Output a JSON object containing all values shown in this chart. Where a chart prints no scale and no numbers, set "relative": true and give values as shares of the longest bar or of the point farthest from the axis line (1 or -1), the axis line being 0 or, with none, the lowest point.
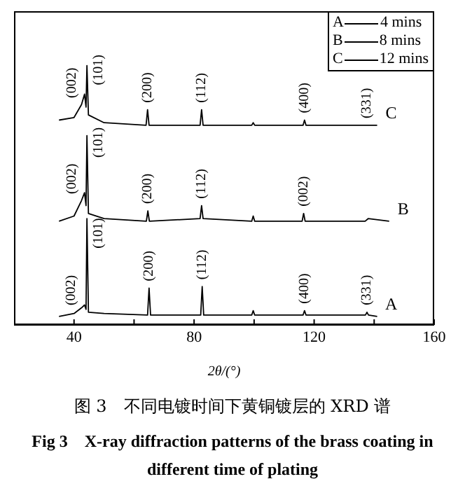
{
  "chart_data": {
    "type": "line",
    "relative": true,
    "title": "图 3　不同电镀时间下黄铜镀层的 XRD 谱",
    "subtitle": "Fig 3　X-ray diffraction patterns of the brass coating in different time of plating",
    "xlabel": "2θ/(°)",
    "xlim": [
      20,
      160
    ],
    "xticks": [
      40,
      {
        "value": 60,
        "label": null
      },
      80,
      {
        "value": 100,
        "label": null
      },
      120,
      {
        "value": 140,
        "label": null
      },
      160
    ],
    "tick_labels": "x",
    "marker": "none",
    "line_style": "solid",
    "legend": "top right",
    "series": [
      {
        "name": "4 mins",
        "color": "#000000",
        "x": [
          35,
          40,
          42.5,
          43.5,
          44.0,
          44.3,
          44.8,
          50,
          64.5,
          65,
          65.5,
          82.2,
          82.7,
          83.2,
          99.2,
          99.7,
          100.2,
          116.3,
          116.8,
          117.3,
          137.1,
          137.6,
          138.1,
          141
        ],
        "values": [
          0.033,
          0.044,
          0.066,
          0.077,
          0.06,
          0.41,
          0.049,
          0.044,
          0.038,
          0.142,
          0.038,
          0.038,
          0.148,
          0.038,
          0.038,
          0.055,
          0.038,
          0.038,
          0.055,
          0.038,
          0.038,
          0.049,
          0.038,
          0.033
        ]
      },
      {
        "name": "8 mins",
        "color": "#000000",
        "x": [
          35,
          40,
          42.5,
          43.5,
          44.0,
          44.3,
          44.8,
          50,
          64.1,
          64.6,
          65.1,
          82.0,
          82.5,
          83.0,
          99.2,
          99.7,
          100.2,
          116.0,
          116.5,
          117.0,
          137,
          138,
          145
        ],
        "values": [
          0.4,
          0.42,
          0.48,
          0.51,
          0.46,
          0.73,
          0.43,
          0.41,
          0.4,
          0.44,
          0.4,
          0.41,
          0.46,
          0.41,
          0.4,
          0.42,
          0.4,
          0.4,
          0.43,
          0.4,
          0.4,
          0.41,
          0.4
        ]
      },
      {
        "name": "12 mins",
        "color": "#000000",
        "x": [
          35,
          40,
          42.5,
          43.5,
          44.0,
          44.3,
          44.8,
          50,
          64,
          64.5,
          65,
          82,
          82.5,
          83,
          99.2,
          99.7,
          100.2,
          116.3,
          116.8,
          117.3,
          141
        ],
        "values": [
          0.79,
          0.8,
          0.85,
          0.89,
          0.84,
          1,
          0.81,
          0.78,
          0.77,
          0.83,
          0.77,
          0.77,
          0.83,
          0.77,
          0.77,
          0.78,
          0.77,
          0.77,
          0.79,
          0.77,
          0.77
        ]
      }
    ],
    "annotations": [
      {
        "text": "A",
        "x": 141,
        "y": 0.033
      },
      {
        "text": "B",
        "x": 145,
        "y": 0.4
      },
      {
        "text": "C",
        "x": 141,
        "y": 0.77
      },
      {
        "text": "(002)",
        "x": 42.86,
        "y": 0.07
      },
      {
        "text": "(101)",
        "x": 44.47,
        "y": 0.29
      },
      {
        "text": "(200)",
        "x": 65,
        "y": 0.142
      },
      {
        "text": "(112)",
        "x": 82.7,
        "y": 0.148
      },
      {
        "text": "(400)",
        "x": 116.8,
        "y": 0.055
      },
      {
        "text": "(331)",
        "x": 137.6,
        "y": 0.049
      },
      {
        "text": "(002)",
        "x": 43.17,
        "y": 0.5
      },
      {
        "text": "(101)",
        "x": 44.45,
        "y": 0.64
      },
      {
        "text": "(200)",
        "x": 64.6,
        "y": 0.44
      },
      {
        "text": "(112)",
        "x": 82.5,
        "y": 0.46
      },
      {
        "text": "(002)",
        "x": 116.5,
        "y": 0.43
      },
      {
        "text": "(002)",
        "x": 43.0,
        "y": 0.87
      },
      {
        "text": "(101)",
        "x": 44.51,
        "y": 0.92
      },
      {
        "text": "(200)",
        "x": 64.5,
        "y": 0.83
      },
      {
        "text": "(112)",
        "x": 82.5,
        "y": 0.83
      },
      {
        "text": "(400)",
        "x": 116.8,
        "y": 0.79
      },
      {
        "text": "(331)",
        "x": 137.6,
        "y": 0.77
      }
    ]
  }
}
